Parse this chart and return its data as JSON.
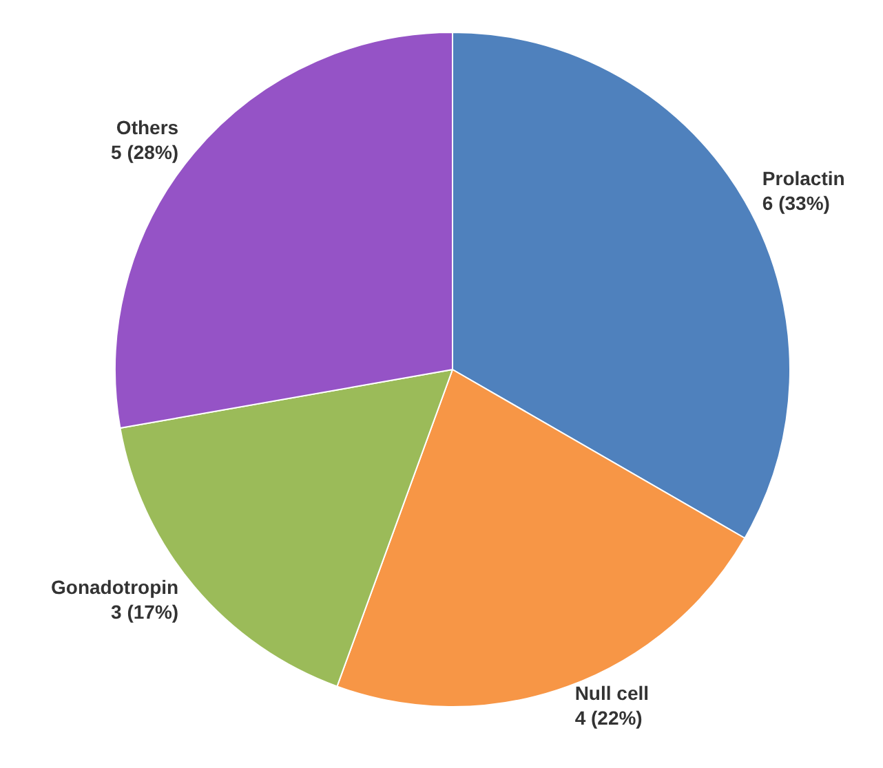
{
  "chart_data": {
    "type": "pie",
    "categories": [
      "Prolactin",
      "Null cell",
      "Gonadotropin",
      "Others"
    ],
    "values": [
      6,
      4,
      3,
      5
    ],
    "colors": [
      "#4f81bd",
      "#f79646",
      "#9bbb59",
      "#9553c6"
    ],
    "value_labels": [
      "6 (33%)",
      "4 (22%)",
      "3 (17%)",
      "5 (28%)"
    ]
  }
}
